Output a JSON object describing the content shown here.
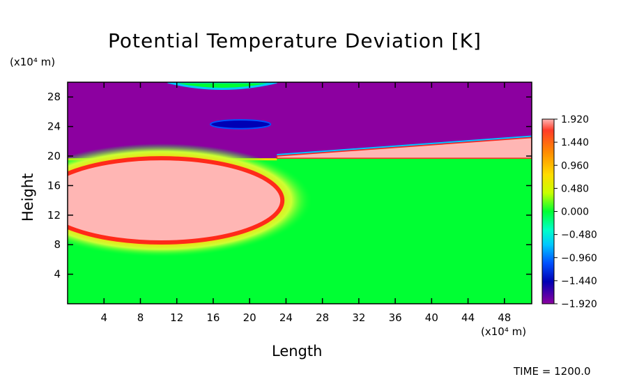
{
  "chart_data": {
    "type": "heatmap",
    "title": "Potential Temperature Deviation [K]",
    "xlabel": "Length",
    "ylabel": "Height",
    "x_unit": "(x10⁴ m)",
    "y_unit": "(x10⁴ m)",
    "xlim": [
      0,
      51
    ],
    "ylim": [
      0,
      30
    ],
    "x_ticks": [
      4,
      8,
      12,
      16,
      20,
      24,
      28,
      32,
      36,
      40,
      44,
      48
    ],
    "y_ticks": [
      4,
      8,
      12,
      16,
      20,
      24,
      28
    ],
    "colorbar": {
      "range": [
        -1.92,
        1.92
      ],
      "tick_values": [
        1.92,
        1.44,
        0.96,
        0.48,
        0.0,
        -0.48,
        -0.96,
        -1.44,
        -1.92
      ],
      "tick_labels": [
        "1.920",
        "1.440",
        "0.960",
        "0.480",
        "0.000",
        "−0.480",
        "−0.960",
        "−1.440",
        "−1.920"
      ]
    },
    "regions": [
      {
        "desc": "upper layer",
        "value": -1.92,
        "y_range": [
          19.7,
          30
        ]
      },
      {
        "desc": "warm bubble",
        "value": 1.92,
        "center": [
          10.3,
          14
        ],
        "semi_axes": [
          13.3,
          5.7
        ]
      },
      {
        "desc": "warm wedge",
        "value": 1.92,
        "x_range": [
          23,
          51
        ],
        "y_top": [
          20,
          22.5
        ]
      },
      {
        "desc": "cold patch",
        "value": -1.5,
        "center": [
          19,
          24.3
        ]
      },
      {
        "desc": "lower background",
        "value": 0.0
      }
    ]
  },
  "footer": {
    "time": "TIME = 1200.0"
  }
}
